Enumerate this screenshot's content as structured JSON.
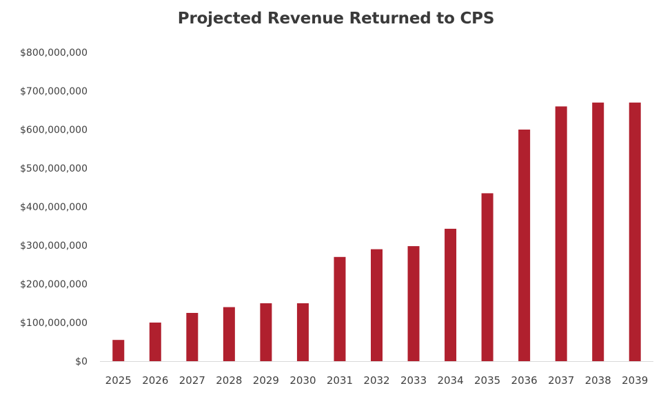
{
  "chart_data": {
    "type": "bar",
    "title": "Projected Revenue Returned to CPS",
    "xlabel": "",
    "ylabel": "",
    "categories": [
      "2025",
      "2026",
      "2027",
      "2028",
      "2029",
      "2030",
      "2031",
      "2032",
      "2033",
      "2034",
      "2035",
      "2036",
      "2037",
      "2038",
      "2039"
    ],
    "values": [
      55000000,
      100000000,
      125000000,
      140000000,
      150000000,
      150000000,
      270000000,
      290000000,
      298000000,
      343000000,
      435000000,
      600000000,
      660000000,
      670000000,
      670000000
    ],
    "ylim": [
      0,
      800000000
    ],
    "y_ticks": [
      {
        "value": 0,
        "label": "$0"
      },
      {
        "value": 100000000,
        "label": "$100,000,000"
      },
      {
        "value": 200000000,
        "label": "$200,000,000"
      },
      {
        "value": 300000000,
        "label": "$300,000,000"
      },
      {
        "value": 400000000,
        "label": "$400,000,000"
      },
      {
        "value": 500000000,
        "label": "$500,000,000"
      },
      {
        "value": 600000000,
        "label": "$600,000,000"
      },
      {
        "value": 700000000,
        "label": "$700,000,000"
      },
      {
        "value": 800000000,
        "label": "$800,000,000"
      }
    ],
    "grid": false,
    "legend": "none",
    "bar_color": "#b0202e",
    "axis_color": "#d9d9d9"
  }
}
